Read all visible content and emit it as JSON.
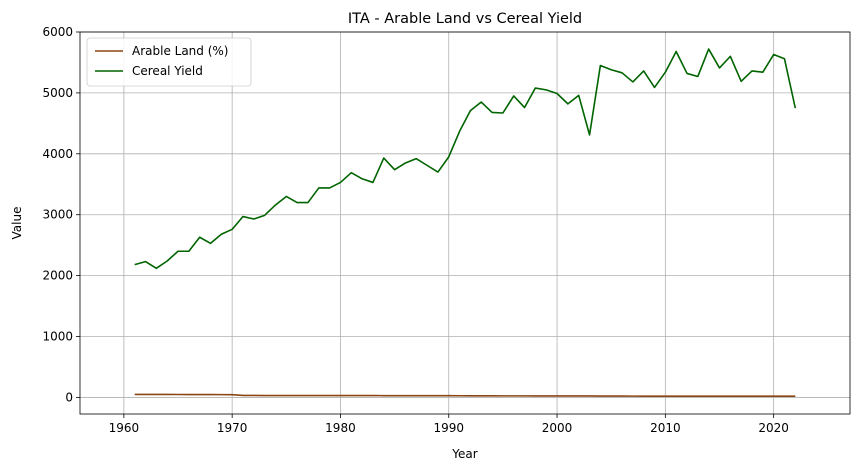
{
  "chart_data": {
    "type": "line",
    "title": "ITA - Arable Land vs Cereal Yield",
    "xlabel": "Year",
    "ylabel": "Value",
    "xlim": [
      1955.95,
      2027.05
    ],
    "ylim": [
      -272,
      6000
    ],
    "xticks": [
      1960,
      1970,
      1980,
      1990,
      2000,
      2010,
      2020
    ],
    "yticks": [
      0,
      1000,
      2000,
      3000,
      4000,
      5000,
      6000
    ],
    "grid": true,
    "legend_position": "top-left",
    "x": [
      1961,
      1962,
      1963,
      1964,
      1965,
      1966,
      1967,
      1968,
      1969,
      1970,
      1971,
      1972,
      1973,
      1974,
      1975,
      1976,
      1977,
      1978,
      1979,
      1980,
      1981,
      1982,
      1983,
      1984,
      1985,
      1986,
      1987,
      1988,
      1989,
      1990,
      1991,
      1992,
      1993,
      1994,
      1995,
      1996,
      1997,
      1998,
      1999,
      2000,
      2001,
      2002,
      2003,
      2004,
      2005,
      2006,
      2007,
      2008,
      2009,
      2010,
      2011,
      2012,
      2013,
      2014,
      2015,
      2016,
      2017,
      2018,
      2019,
      2020,
      2021,
      2022
    ],
    "series": [
      {
        "name": "Arable Land (%)",
        "color": "#8b4513",
        "values": [
          50,
          49.5,
          49,
          48.5,
          48,
          47.5,
          47,
          46.5,
          46,
          45,
          32,
          32,
          31.5,
          31.5,
          31,
          31,
          31,
          30.5,
          30.5,
          30.5,
          30,
          30,
          30,
          29.5,
          29,
          29,
          28.5,
          28.5,
          28,
          28,
          27.5,
          27,
          26.5,
          26,
          25.5,
          25.5,
          25.5,
          25,
          25,
          25,
          25,
          24.5,
          24,
          23,
          22.5,
          22,
          21.5,
          21,
          20.5,
          20.5,
          20.5,
          20,
          20,
          20,
          20,
          20,
          20,
          20,
          20,
          21,
          21,
          21
        ]
      },
      {
        "name": "Cereal Yield",
        "color": "#006400",
        "values": [
          2180,
          2230,
          2120,
          2240,
          2400,
          2400,
          2630,
          2530,
          2680,
          2760,
          2970,
          2930,
          2990,
          3160,
          3300,
          3200,
          3200,
          3440,
          3440,
          3530,
          3690,
          3590,
          3530,
          3930,
          3740,
          3850,
          3920,
          3810,
          3700,
          3950,
          4370,
          4710,
          4850,
          4680,
          4670,
          4950,
          4760,
          5080,
          5050,
          4990,
          4820,
          4960,
          4310,
          5450,
          5380,
          5330,
          5180,
          5360,
          5090,
          5340,
          5680,
          5320,
          5270,
          5720,
          5410,
          5600,
          5190,
          5360,
          5340,
          5630,
          5560,
          4750
        ]
      }
    ]
  }
}
